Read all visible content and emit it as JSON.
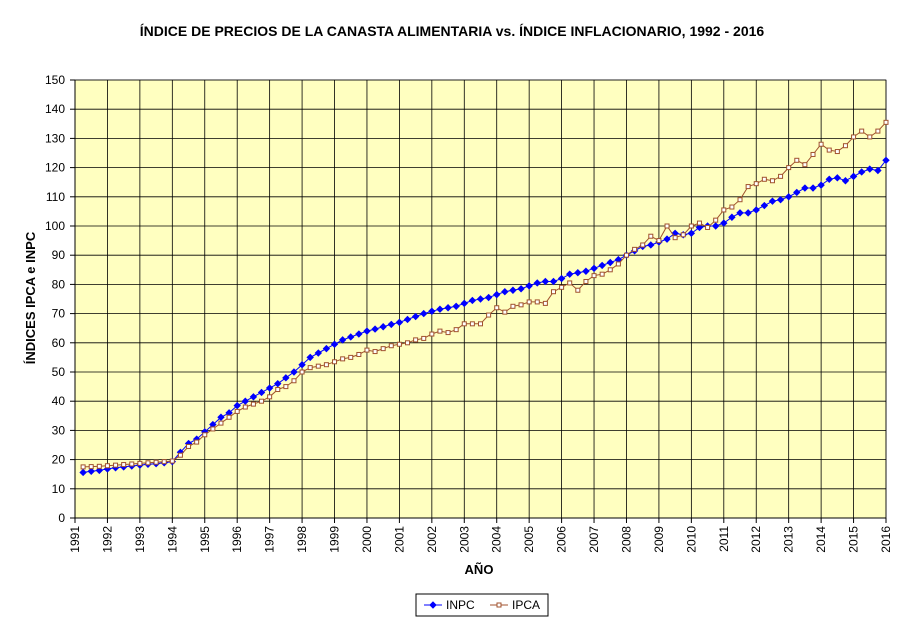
{
  "chart_data": {
    "type": "line",
    "title": "ÍNDICE DE PRECIOS DE LA CANASTA ALIMENTARIA vs. ÍNDICE INFLACIONARIO, 1992 - 2016",
    "xlabel": "AÑO",
    "ylabel": "ÍNDICES IPCA e INPC",
    "ylim": [
      0,
      150
    ],
    "yticks": [
      0,
      10,
      20,
      30,
      40,
      50,
      60,
      70,
      80,
      90,
      100,
      110,
      120,
      130,
      140,
      150
    ],
    "xlim": [
      1991,
      2016
    ],
    "xticks": [
      "1991",
      "1992",
      "1993",
      "1994",
      "1995",
      "1996",
      "1997",
      "1998",
      "1999",
      "2000",
      "2001",
      "2002",
      "2003",
      "2004",
      "2005",
      "2006",
      "2007",
      "2008",
      "2009",
      "2010",
      "2011",
      "2012",
      "2013",
      "2014",
      "2015",
      "2016"
    ],
    "grid": true,
    "plot_background": "#ffffc0",
    "legend_position": "bottom",
    "series": [
      {
        "name": "INPC",
        "color": "#0000ff",
        "marker": "diamond",
        "points": [
          [
            1991.25,
            15.6
          ],
          [
            1991.5,
            16.0
          ],
          [
            1991.75,
            16.3
          ],
          [
            1992.0,
            16.8
          ],
          [
            1992.25,
            17.2
          ],
          [
            1992.5,
            17.5
          ],
          [
            1992.75,
            17.8
          ],
          [
            1993.0,
            18.1
          ],
          [
            1993.25,
            18.4
          ],
          [
            1993.5,
            18.6
          ],
          [
            1993.75,
            18.9
          ],
          [
            1994.0,
            19.3
          ],
          [
            1994.25,
            22.5
          ],
          [
            1994.5,
            25.5
          ],
          [
            1994.75,
            27.0
          ],
          [
            1995.0,
            29.5
          ],
          [
            1995.25,
            32.0
          ],
          [
            1995.5,
            34.5
          ],
          [
            1995.75,
            36.0
          ],
          [
            1996.0,
            38.5
          ],
          [
            1996.25,
            40.0
          ],
          [
            1996.5,
            41.5
          ],
          [
            1996.75,
            43.0
          ],
          [
            1997.0,
            44.5
          ],
          [
            1997.25,
            46.0
          ],
          [
            1997.5,
            48.0
          ],
          [
            1997.75,
            50.0
          ],
          [
            1998.0,
            52.5
          ],
          [
            1998.25,
            55.0
          ],
          [
            1998.5,
            56.5
          ],
          [
            1998.75,
            58.0
          ],
          [
            1999.0,
            59.5
          ],
          [
            1999.25,
            61.0
          ],
          [
            1999.5,
            62.0
          ],
          [
            1999.75,
            63.0
          ],
          [
            2000.0,
            64.0
          ],
          [
            2000.25,
            64.7
          ],
          [
            2000.5,
            65.5
          ],
          [
            2000.75,
            66.3
          ],
          [
            2001.0,
            67.0
          ],
          [
            2001.25,
            68.0
          ],
          [
            2001.5,
            69.0
          ],
          [
            2001.75,
            70.0
          ],
          [
            2002.0,
            70.8
          ],
          [
            2002.25,
            71.5
          ],
          [
            2002.5,
            72.0
          ],
          [
            2002.75,
            72.5
          ],
          [
            2003.0,
            73.5
          ],
          [
            2003.25,
            74.5
          ],
          [
            2003.5,
            75.0
          ],
          [
            2003.75,
            75.5
          ],
          [
            2004.0,
            76.5
          ],
          [
            2004.25,
            77.5
          ],
          [
            2004.5,
            78.0
          ],
          [
            2004.75,
            78.5
          ],
          [
            2005.0,
            79.5
          ],
          [
            2005.25,
            80.5
          ],
          [
            2005.5,
            81.0
          ],
          [
            2005.75,
            81.0
          ],
          [
            2006.0,
            82.0
          ],
          [
            2006.25,
            83.5
          ],
          [
            2006.5,
            84.0
          ],
          [
            2006.75,
            84.5
          ],
          [
            2007.0,
            85.5
          ],
          [
            2007.25,
            86.5
          ],
          [
            2007.5,
            87.5
          ],
          [
            2007.75,
            88.5
          ],
          [
            2008.0,
            90.0
          ],
          [
            2008.25,
            91.5
          ],
          [
            2008.5,
            93.0
          ],
          [
            2008.75,
            93.5
          ],
          [
            2009.0,
            94.5
          ],
          [
            2009.25,
            95.5
          ],
          [
            2009.5,
            97.5
          ],
          [
            2009.75,
            97.0
          ],
          [
            2010.0,
            97.5
          ],
          [
            2010.25,
            99.5
          ],
          [
            2010.5,
            100.0
          ],
          [
            2010.75,
            100.0
          ],
          [
            2011.0,
            101.0
          ],
          [
            2011.25,
            103.0
          ],
          [
            2011.5,
            104.5
          ],
          [
            2011.75,
            104.5
          ],
          [
            2012.0,
            105.5
          ],
          [
            2012.25,
            107.0
          ],
          [
            2012.5,
            108.5
          ],
          [
            2012.75,
            109.0
          ],
          [
            2013.0,
            110.0
          ],
          [
            2013.25,
            111.5
          ],
          [
            2013.5,
            113.0
          ],
          [
            2013.75,
            113.0
          ],
          [
            2014.0,
            114.0
          ],
          [
            2014.25,
            116.0
          ],
          [
            2014.5,
            116.5
          ],
          [
            2014.75,
            115.5
          ],
          [
            2015.0,
            117.0
          ],
          [
            2015.25,
            118.5
          ],
          [
            2015.5,
            119.5
          ],
          [
            2015.75,
            119.0
          ],
          [
            2016.0,
            122.5
          ]
        ]
      },
      {
        "name": "IPCA",
        "color": "#a0522d",
        "marker": "square",
        "points": [
          [
            1991.25,
            17.5
          ],
          [
            1991.5,
            17.6
          ],
          [
            1991.75,
            17.7
          ],
          [
            1992.0,
            17.9
          ],
          [
            1992.25,
            18.1
          ],
          [
            1992.5,
            18.3
          ],
          [
            1992.75,
            18.5
          ],
          [
            1993.0,
            18.7
          ],
          [
            1993.25,
            18.9
          ],
          [
            1993.5,
            19.1
          ],
          [
            1993.75,
            19.3
          ],
          [
            1994.0,
            19.5
          ],
          [
            1994.25,
            21.5
          ],
          [
            1994.5,
            24.5
          ],
          [
            1994.75,
            26.0
          ],
          [
            1995.0,
            28.5
          ],
          [
            1995.25,
            30.5
          ],
          [
            1995.5,
            32.5
          ],
          [
            1995.75,
            34.5
          ],
          [
            1996.0,
            36.5
          ],
          [
            1996.25,
            38.0
          ],
          [
            1996.5,
            39.0
          ],
          [
            1996.75,
            40.0
          ],
          [
            1997.0,
            41.5
          ],
          [
            1997.25,
            44.0
          ],
          [
            1997.5,
            45.0
          ],
          [
            1997.75,
            47.0
          ],
          [
            1998.0,
            50.0
          ],
          [
            1998.25,
            51.5
          ],
          [
            1998.5,
            52.0
          ],
          [
            1998.75,
            52.5
          ],
          [
            1999.0,
            53.5
          ],
          [
            1999.25,
            54.5
          ],
          [
            1999.5,
            55.0
          ],
          [
            1999.75,
            56.0
          ],
          [
            2000.0,
            57.5
          ],
          [
            2000.25,
            57.0
          ],
          [
            2000.5,
            58.0
          ],
          [
            2000.75,
            59.0
          ],
          [
            2001.0,
            59.5
          ],
          [
            2001.25,
            60.0
          ],
          [
            2001.5,
            61.0
          ],
          [
            2001.75,
            61.5
          ],
          [
            2002.0,
            63.0
          ],
          [
            2002.25,
            64.0
          ],
          [
            2002.5,
            63.5
          ],
          [
            2002.75,
            64.5
          ],
          [
            2003.0,
            66.5
          ],
          [
            2003.25,
            66.5
          ],
          [
            2003.5,
            66.5
          ],
          [
            2003.75,
            69.5
          ],
          [
            2004.0,
            72.0
          ],
          [
            2004.25,
            70.5
          ],
          [
            2004.5,
            72.5
          ],
          [
            2004.75,
            73.0
          ],
          [
            2005.0,
            74.0
          ],
          [
            2005.25,
            74.0
          ],
          [
            2005.5,
            73.5
          ],
          [
            2005.75,
            77.5
          ],
          [
            2006.0,
            79.0
          ],
          [
            2006.25,
            80.5
          ],
          [
            2006.5,
            78.0
          ],
          [
            2006.75,
            81.0
          ],
          [
            2007.0,
            83.0
          ],
          [
            2007.25,
            83.5
          ],
          [
            2007.5,
            85.0
          ],
          [
            2007.75,
            87.0
          ],
          [
            2008.0,
            90.0
          ],
          [
            2008.25,
            92.0
          ],
          [
            2008.5,
            93.5
          ],
          [
            2008.75,
            96.5
          ],
          [
            2009.0,
            95.0
          ],
          [
            2009.25,
            100.0
          ],
          [
            2009.5,
            96.0
          ],
          [
            2009.75,
            97.0
          ],
          [
            2010.0,
            100.0
          ],
          [
            2010.25,
            101.0
          ],
          [
            2010.5,
            99.5
          ],
          [
            2010.75,
            102.0
          ],
          [
            2011.0,
            105.5
          ],
          [
            2011.25,
            106.5
          ],
          [
            2011.5,
            109.0
          ],
          [
            2011.75,
            113.5
          ],
          [
            2012.0,
            114.5
          ],
          [
            2012.25,
            116.0
          ],
          [
            2012.5,
            115.5
          ],
          [
            2012.75,
            117.0
          ],
          [
            2013.0,
            120.0
          ],
          [
            2013.25,
            122.5
          ],
          [
            2013.5,
            121.0
          ],
          [
            2013.75,
            124.5
          ],
          [
            2014.0,
            128.0
          ],
          [
            2014.25,
            126.0
          ],
          [
            2014.5,
            125.5
          ],
          [
            2014.75,
            127.5
          ],
          [
            2015.0,
            130.5
          ],
          [
            2015.25,
            132.5
          ],
          [
            2015.5,
            130.5
          ],
          [
            2015.75,
            132.5
          ],
          [
            2016.0,
            135.5
          ]
        ]
      }
    ]
  }
}
